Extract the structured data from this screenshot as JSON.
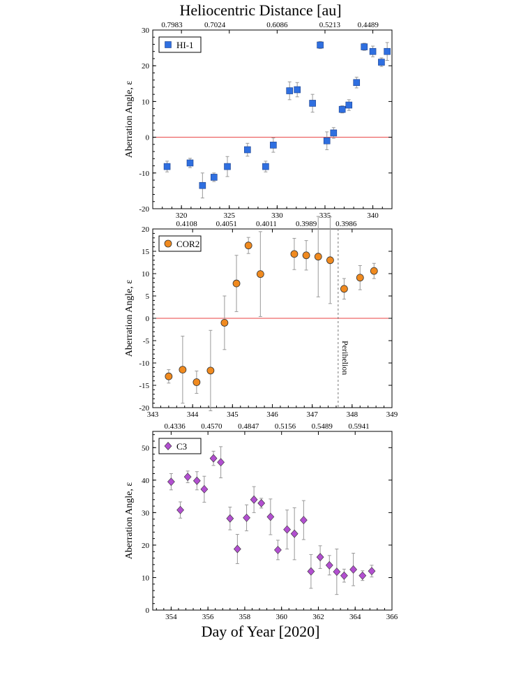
{
  "figure": {
    "top_title": "Heliocentric Distance [au]",
    "bottom_title": "Day of Year [2020]"
  },
  "colors": {
    "hi1": "#2f6fe0",
    "cor2": "#f08a1f",
    "c3": "#b24fd0",
    "zero_line": "#e84040",
    "errorbar": "#999999"
  },
  "chart_data": [
    {
      "type": "scatter",
      "id": "hi1",
      "legend": "HI-1",
      "marker": "square",
      "ylabel": "Aberration Angle, ε",
      "xlim": [
        317,
        342
      ],
      "ylim": [
        -20,
        30
      ],
      "xticks": [
        320,
        325,
        330,
        335,
        340
      ],
      "yticks": [
        -20,
        -10,
        0,
        10,
        20,
        30
      ],
      "top_axis": {
        "label": "Heliocentric Distance [au]",
        "ticks": [
          {
            "x": 319,
            "label": "0.7983"
          },
          {
            "x": 323.5,
            "label": "0.7024"
          },
          {
            "x": 330,
            "label": "0.6086"
          },
          {
            "x": 335.5,
            "label": "0.5213"
          },
          {
            "x": 339.5,
            "label": "0.4489"
          }
        ]
      },
      "zero_line": true,
      "points": [
        {
          "x": 318.5,
          "y": -8.2,
          "err": 1.5
        },
        {
          "x": 320.9,
          "y": -7.2,
          "err": 1.3
        },
        {
          "x": 322.2,
          "y": -13.5,
          "err": 3.5
        },
        {
          "x": 323.4,
          "y": -11.2,
          "err": 1.2
        },
        {
          "x": 324.8,
          "y": -8.2,
          "err": 2.8
        },
        {
          "x": 326.9,
          "y": -3.5,
          "err": 1.8
        },
        {
          "x": 328.8,
          "y": -8.2,
          "err": 1.5
        },
        {
          "x": 329.6,
          "y": -2.2,
          "err": 2.0
        },
        {
          "x": 331.3,
          "y": 13.0,
          "err": 2.5
        },
        {
          "x": 332.1,
          "y": 13.3,
          "err": 2.0
        },
        {
          "x": 333.7,
          "y": 9.5,
          "err": 2.5
        },
        {
          "x": 334.5,
          "y": 25.8,
          "err": 1.0
        },
        {
          "x": 335.2,
          "y": -1.0,
          "err": 2.5
        },
        {
          "x": 335.9,
          "y": 1.2,
          "err": 1.5
        },
        {
          "x": 336.8,
          "y": 7.8,
          "err": 1.0
        },
        {
          "x": 337.5,
          "y": 9.0,
          "err": 1.5
        },
        {
          "x": 338.3,
          "y": 15.3,
          "err": 1.5
        },
        {
          "x": 339.1,
          "y": 25.3,
          "err": 1.0
        },
        {
          "x": 340.0,
          "y": 24.0,
          "err": 1.5
        },
        {
          "x": 340.9,
          "y": 21.0,
          "err": 1.2
        },
        {
          "x": 341.5,
          "y": 24.0,
          "err": 2.5
        }
      ]
    },
    {
      "type": "scatter",
      "id": "cor2",
      "legend": "COR2",
      "marker": "circle",
      "ylabel": "Aberration Angle, ε",
      "xlim": [
        343,
        349
      ],
      "ylim": [
        -20,
        20
      ],
      "xticks": [
        343,
        344,
        345,
        346,
        347,
        348,
        349
      ],
      "yticks": [
        -20,
        -15,
        -10,
        -5,
        0,
        5,
        10,
        15,
        20
      ],
      "top_axis": {
        "label": "",
        "ticks": [
          {
            "x": 343.85,
            "label": "0.4108"
          },
          {
            "x": 344.85,
            "label": "0.4051"
          },
          {
            "x": 345.85,
            "label": "0.4011"
          },
          {
            "x": 346.85,
            "label": "0.3989"
          },
          {
            "x": 347.85,
            "label": "0.3986"
          }
        ]
      },
      "zero_line": true,
      "perihelion": {
        "x": 347.65,
        "label": "Perihelion"
      },
      "points": [
        {
          "x": 343.4,
          "y": -13.0,
          "err": 1.5
        },
        {
          "x": 343.75,
          "y": -11.5,
          "err": 7.5
        },
        {
          "x": 344.1,
          "y": -14.3,
          "err": 2.5
        },
        {
          "x": 344.45,
          "y": -11.7,
          "err": 9.0
        },
        {
          "x": 344.8,
          "y": -1.0,
          "err": 6.0
        },
        {
          "x": 345.1,
          "y": 7.8,
          "err": 6.3
        },
        {
          "x": 345.4,
          "y": 16.3,
          "err": 1.8
        },
        {
          "x": 345.7,
          "y": 9.9,
          "err": 9.5
        },
        {
          "x": 346.55,
          "y": 14.4,
          "err": 3.5
        },
        {
          "x": 346.85,
          "y": 14.1,
          "err": 3.3
        },
        {
          "x": 347.15,
          "y": 13.8,
          "err": 9.0
        },
        {
          "x": 347.45,
          "y": 13.0,
          "err": 9.7
        },
        {
          "x": 347.8,
          "y": 6.6,
          "err": 2.3
        },
        {
          "x": 348.2,
          "y": 9.1,
          "err": 2.7
        },
        {
          "x": 348.55,
          "y": 10.6,
          "err": 1.7
        }
      ]
    },
    {
      "type": "scatter",
      "id": "c3",
      "legend": "C3",
      "marker": "diamond",
      "ylabel": "Aberration Angle, ε",
      "xlim": [
        353,
        366
      ],
      "ylim": [
        0,
        55
      ],
      "xticks": [
        354,
        356,
        358,
        360,
        362,
        364,
        366
      ],
      "yticks": [
        0,
        10,
        20,
        30,
        40,
        50
      ],
      "top_axis": {
        "label": "",
        "ticks": [
          {
            "x": 354.2,
            "label": "0.4336"
          },
          {
            "x": 356.2,
            "label": "0.4570"
          },
          {
            "x": 358.2,
            "label": "0.4847"
          },
          {
            "x": 360.2,
            "label": "0.5156"
          },
          {
            "x": 362.2,
            "label": "0.5489"
          },
          {
            "x": 364.2,
            "label": "0.5941"
          }
        ]
      },
      "zero_line": false,
      "points": [
        {
          "x": 354.0,
          "y": 39.5,
          "err": 2.5
        },
        {
          "x": 354.5,
          "y": 30.8,
          "err": 2.5
        },
        {
          "x": 354.9,
          "y": 41.0,
          "err": 1.8
        },
        {
          "x": 355.4,
          "y": 39.8,
          "err": 2.8
        },
        {
          "x": 355.8,
          "y": 37.2,
          "err": 4.0
        },
        {
          "x": 356.3,
          "y": 46.7,
          "err": 2.2
        },
        {
          "x": 356.7,
          "y": 45.5,
          "err": 4.8
        },
        {
          "x": 357.2,
          "y": 28.2,
          "err": 3.5
        },
        {
          "x": 357.6,
          "y": 18.8,
          "err": 4.5
        },
        {
          "x": 358.1,
          "y": 28.4,
          "err": 4.0
        },
        {
          "x": 358.5,
          "y": 34.0,
          "err": 4.0
        },
        {
          "x": 358.9,
          "y": 32.9,
          "err": 1.5
        },
        {
          "x": 359.4,
          "y": 28.7,
          "err": 5.5
        },
        {
          "x": 359.8,
          "y": 18.5,
          "err": 3.0
        },
        {
          "x": 360.3,
          "y": 24.8,
          "err": 6.0
        },
        {
          "x": 360.7,
          "y": 23.5,
          "err": 8.0
        },
        {
          "x": 361.2,
          "y": 27.7,
          "err": 6.0
        },
        {
          "x": 361.6,
          "y": 11.9,
          "err": 5.2
        },
        {
          "x": 362.1,
          "y": 16.3,
          "err": 3.5
        },
        {
          "x": 362.6,
          "y": 13.8,
          "err": 3.0
        },
        {
          "x": 363.0,
          "y": 11.8,
          "err": 7.0
        },
        {
          "x": 363.4,
          "y": 10.6,
          "err": 2.0
        },
        {
          "x": 363.9,
          "y": 12.5,
          "err": 5.0
        },
        {
          "x": 364.4,
          "y": 10.6,
          "err": 1.5
        },
        {
          "x": 364.9,
          "y": 12.0,
          "err": 1.8
        }
      ]
    }
  ]
}
